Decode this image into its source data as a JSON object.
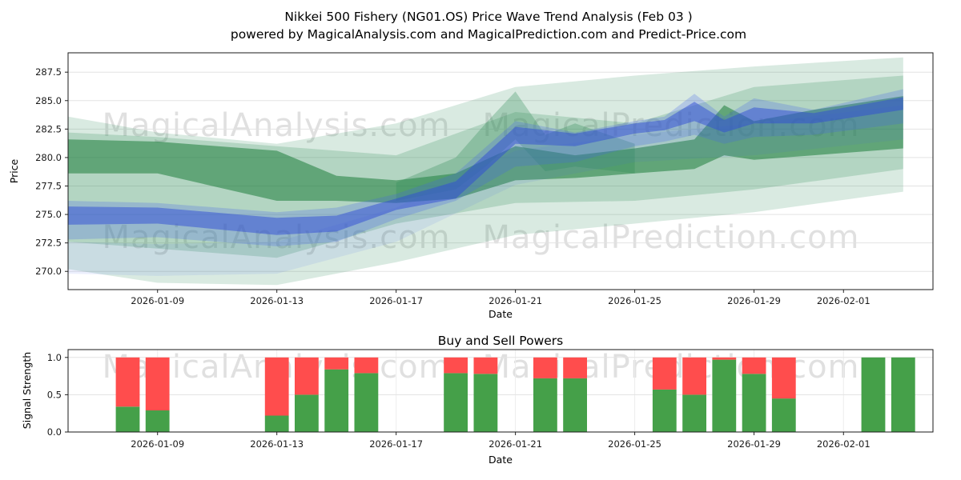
{
  "title": {
    "line1": "Nikkei 500 Fishery (NG01.OS) Price Wave Trend Analysis (Feb 03 )",
    "line2": "powered by MagicalAnalysis.com and MagicalPrediction.com and Predict-Price.com"
  },
  "watermarks": {
    "left": "MagicalAnalysis.com",
    "right": "MagicalPrediction.com"
  },
  "colors": {
    "grid": "#e3e3e3",
    "band_green": "#2e8b57",
    "band_green_dark": "#1e7d3c",
    "band_blue": "#4263eb",
    "band_blue_dark": "#2f4bd6",
    "bar_green": "#45a049",
    "bar_red": "#ff4d4d"
  },
  "chart_data": [
    {
      "type": "area",
      "title": "",
      "xlabel": "Date",
      "ylabel": "Price",
      "grid": "horizontal",
      "legend": "none",
      "xlim": [
        "2026-01-06",
        "2026-02-04"
      ],
      "ylim": [
        268.4,
        289.2
      ],
      "x_ticks": [
        "2026-01-09",
        "2026-01-13",
        "2026-01-17",
        "2026-01-21",
        "2026-01-25",
        "2026-01-29",
        "2026-02-01"
      ],
      "y_ticks": [
        "270.0",
        "272.5",
        "275.0",
        "277.5",
        "280.0",
        "282.5",
        "285.0",
        "287.5"
      ],
      "bands": [
        {
          "name": "green-outer-envelope",
          "color": "#2e8b57",
          "opacity": 0.18,
          "x": [
            "2026-01-06",
            "2026-01-09",
            "2026-01-13",
            "2026-01-17",
            "2026-01-21",
            "2026-01-25",
            "2026-01-29",
            "2026-02-03"
          ],
          "upper": [
            283.6,
            282.2,
            281.2,
            283.0,
            286.2,
            287.2,
            288.0,
            288.8
          ],
          "lower": [
            270.2,
            269.0,
            268.8,
            270.8,
            273.2,
            274.2,
            275.2,
            277.0
          ]
        },
        {
          "name": "green-mid-envelope",
          "color": "#2e8b57",
          "opacity": 0.22,
          "x": [
            "2026-01-06",
            "2026-01-09",
            "2026-01-13",
            "2026-01-17",
            "2026-01-21",
            "2026-01-25",
            "2026-01-29",
            "2026-02-03"
          ],
          "upper": [
            282.2,
            281.8,
            281.0,
            280.2,
            284.0,
            283.0,
            286.2,
            287.2
          ],
          "lower": [
            272.6,
            272.0,
            271.2,
            274.2,
            276.0,
            276.2,
            277.2,
            279.0
          ]
        },
        {
          "name": "green-core",
          "color": "#1e7d3c",
          "opacity": 0.55,
          "x": [
            "2026-01-06",
            "2026-01-09",
            "2026-01-13",
            "2026-01-15",
            "2026-01-17",
            "2026-01-19",
            "2026-01-21",
            "2026-01-23",
            "2026-01-25",
            "2026-01-27",
            "2026-01-28",
            "2026-01-29",
            "2026-01-31",
            "2026-02-03"
          ],
          "upper": [
            281.6,
            281.4,
            280.6,
            278.4,
            278.0,
            278.6,
            281.0,
            280.2,
            280.8,
            281.6,
            284.6,
            283.2,
            284.2,
            285.4
          ],
          "lower": [
            278.6,
            278.6,
            276.2,
            276.2,
            276.0,
            276.4,
            278.0,
            278.2,
            278.6,
            279.0,
            280.2,
            279.8,
            280.2,
            280.8
          ]
        },
        {
          "name": "green-spike",
          "color": "#2e8b57",
          "opacity": 0.3,
          "x": [
            "2026-01-17",
            "2026-01-19",
            "2026-01-20",
            "2026-01-21",
            "2026-01-22",
            "2026-01-23",
            "2026-01-25"
          ],
          "upper": [
            277.8,
            280.0,
            283.0,
            285.8,
            282.0,
            283.0,
            281.2
          ],
          "lower": [
            276.2,
            277.2,
            279.2,
            281.6,
            278.8,
            279.2,
            278.6
          ]
        },
        {
          "name": "blue-pale-low",
          "color": "#4263eb",
          "opacity": 0.1,
          "x": [
            "2026-01-06",
            "2026-01-09",
            "2026-01-13",
            "2026-01-17",
            "2026-01-21",
            "2026-01-25",
            "2026-01-29",
            "2026-02-03"
          ],
          "upper": [
            272.6,
            272.4,
            272.6,
            275.6,
            280.6,
            282.0,
            283.0,
            284.6
          ],
          "lower": [
            269.8,
            269.6,
            269.8,
            272.6,
            277.6,
            279.6,
            280.2,
            281.6
          ]
        },
        {
          "name": "blue-mid-envelope",
          "color": "#4263eb",
          "opacity": 0.25,
          "x": [
            "2026-01-06",
            "2026-01-09",
            "2026-01-13",
            "2026-01-15",
            "2026-01-17",
            "2026-01-19",
            "2026-01-21",
            "2026-01-23",
            "2026-01-25",
            "2026-01-26",
            "2026-01-27",
            "2026-01-28",
            "2026-01-29",
            "2026-01-31",
            "2026-02-03"
          ],
          "upper": [
            276.2,
            276.0,
            275.2,
            275.6,
            276.8,
            278.6,
            283.2,
            282.2,
            283.2,
            283.6,
            285.6,
            283.6,
            285.2,
            284.2,
            286.0
          ],
          "lower": [
            272.8,
            273.0,
            272.2,
            272.6,
            274.6,
            276.2,
            279.2,
            279.6,
            281.0,
            281.4,
            282.0,
            281.2,
            281.8,
            282.0,
            283.0
          ]
        },
        {
          "name": "blue-core",
          "color": "#2f4bd6",
          "opacity": 0.5,
          "x": [
            "2026-01-06",
            "2026-01-09",
            "2026-01-13",
            "2026-01-15",
            "2026-01-17",
            "2026-01-19",
            "2026-01-21",
            "2026-01-23",
            "2026-01-25",
            "2026-01-26",
            "2026-01-27",
            "2026-01-28",
            "2026-01-29",
            "2026-01-31",
            "2026-02-03"
          ],
          "upper": [
            275.7,
            275.6,
            274.7,
            274.9,
            276.4,
            277.9,
            282.7,
            282.1,
            283.0,
            283.3,
            284.9,
            283.3,
            284.4,
            283.9,
            285.3
          ],
          "lower": [
            274.1,
            274.2,
            273.2,
            273.5,
            275.4,
            276.4,
            281.2,
            281.0,
            282.1,
            282.4,
            283.2,
            282.2,
            283.0,
            283.0,
            284.2
          ]
        }
      ]
    },
    {
      "type": "bar",
      "stacked": true,
      "title": "Buy and Sell Powers",
      "xlabel": "Date",
      "ylabel": "Signal Strength",
      "grid": "both",
      "legend": "none",
      "xlim": [
        "2026-01-06",
        "2026-02-04"
      ],
      "ylim": [
        0,
        1.105
      ],
      "bar_width_days": 0.8,
      "x_ticks": [
        "2026-01-09",
        "2026-01-13",
        "2026-01-17",
        "2026-01-21",
        "2026-01-25",
        "2026-01-29",
        "2026-02-01"
      ],
      "y_ticks": [
        "0.0",
        "0.5",
        "1.0"
      ],
      "categories": [
        "2026-01-08",
        "2026-01-09",
        "2026-01-13",
        "2026-01-14",
        "2026-01-15",
        "2026-01-16",
        "2026-01-19",
        "2026-01-20",
        "2026-01-22",
        "2026-01-23",
        "2026-01-26",
        "2026-01-27",
        "2026-01-28",
        "2026-01-29",
        "2026-01-30",
        "2026-02-02",
        "2026-02-03"
      ],
      "series": [
        {
          "name": "Buy Power",
          "color": "#45a049",
          "values": [
            0.34,
            0.29,
            0.22,
            0.5,
            0.84,
            0.79,
            0.79,
            0.78,
            0.72,
            0.72,
            0.57,
            0.5,
            0.97,
            0.78,
            0.45,
            1.0,
            1.0
          ]
        },
        {
          "name": "Sell Power",
          "color": "#ff4d4d",
          "values": [
            0.66,
            0.71,
            0.78,
            0.5,
            0.16,
            0.21,
            0.21,
            0.22,
            0.28,
            0.28,
            0.43,
            0.5,
            0.03,
            0.22,
            0.55,
            0.0,
            0.0
          ]
        }
      ]
    }
  ]
}
